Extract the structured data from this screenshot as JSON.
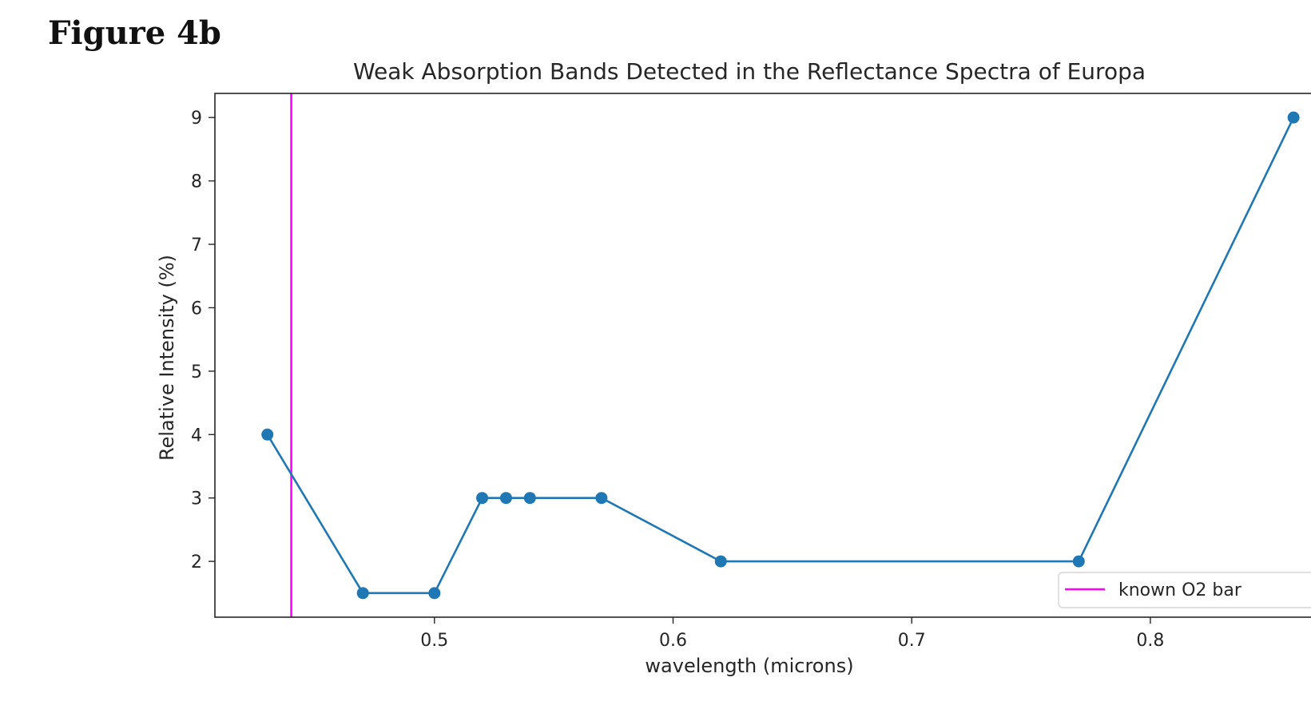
{
  "figure": {
    "label": "Figure 4b"
  },
  "chart_data": {
    "type": "line",
    "title": "Weak Absorption Bands Detected in the Reflectance Spectra of Europa",
    "xlabel": "wavelength (microns)",
    "ylabel": "Relative Intensity (%)",
    "xlim": [
      0.408,
      0.87
    ],
    "ylim": [
      1.12,
      9.38
    ],
    "xticks": [
      0.5,
      0.6,
      0.7,
      0.8
    ],
    "xtick_labels": [
      "0.5",
      "0.6",
      "0.7",
      "0.8"
    ],
    "yticks": [
      2,
      3,
      4,
      5,
      6,
      7,
      8,
      9
    ],
    "ytick_labels": [
      "2",
      "3",
      "4",
      "5",
      "6",
      "7",
      "8",
      "9"
    ],
    "grid": false,
    "series": [
      {
        "color": "#1f77b4",
        "marker": "circle",
        "x": [
          0.43,
          0.47,
          0.5,
          0.52,
          0.53,
          0.54,
          0.57,
          0.62,
          0.77,
          0.86
        ],
        "y": [
          4,
          1.5,
          1.5,
          3,
          3,
          3,
          3,
          2,
          2,
          9
        ]
      }
    ],
    "vlines": [
      {
        "name": "known O2 bands",
        "x": 0.44,
        "color": "#ff00ff"
      }
    ],
    "legend": {
      "placement": "lower-right",
      "entries": [
        {
          "label": "known O2 bar",
          "color": "#ff00ff"
        }
      ]
    }
  }
}
